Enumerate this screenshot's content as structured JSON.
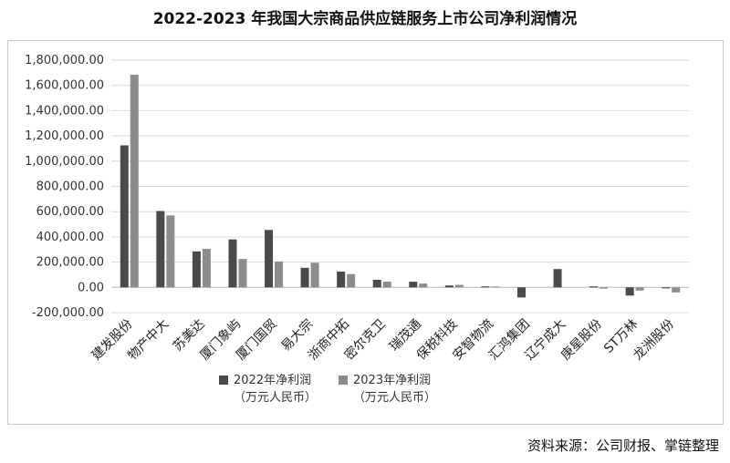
{
  "title": "2022-2023 年我国大宗商品供应链服务上市公司净利润情况",
  "source": "资料来源：公司财报、掌链整理",
  "colors": {
    "series_2022": "#4a4a4a",
    "series_2023": "#8c8c8c",
    "grid": "#d9d9d9",
    "axis": "#bdbdbd"
  },
  "chart_data": {
    "type": "bar",
    "title": "2022-2023 年我国大宗商品供应链服务上市公司净利润情况",
    "xlabel": "",
    "ylabel": "",
    "ylim": [
      -200000,
      1800000
    ],
    "yticks": [
      -200000,
      0,
      200000,
      400000,
      600000,
      800000,
      1000000,
      1200000,
      1400000,
      1600000,
      1800000
    ],
    "ytick_labels": [
      "-200,000.00",
      "0.00",
      "200,000.00",
      "400,000.00",
      "600,000.00",
      "800,000.00",
      "1,000,000.00",
      "1,200,000.00",
      "1,400,000.00",
      "1,600,000.00",
      "1,800,000.00"
    ],
    "grid": true,
    "legend_position": "bottom",
    "categories": [
      "建发股份",
      "物产中大",
      "苏美达",
      "厦门象屿",
      "厦门国贸",
      "易大宗",
      "浙商中拓",
      "密尔克卫",
      "瑞茂通",
      "保税科技",
      "安智物流",
      "汇鸿集团",
      "辽宁成大",
      "庚星股份",
      "ST万林",
      "龙洲股份"
    ],
    "series": [
      {
        "name": "2022年净利润",
        "unit": "（万元人民币）",
        "values": [
          1125000,
          605000,
          285000,
          380000,
          455000,
          155000,
          125000,
          60000,
          45000,
          15000,
          8000,
          -80000,
          145000,
          8000,
          -65000,
          -8000
        ]
      },
      {
        "name": "2023年净利润",
        "unit": "（万元人民币）",
        "values": [
          1685000,
          570000,
          305000,
          225000,
          205000,
          195000,
          105000,
          45000,
          30000,
          20000,
          7000,
          0,
          0,
          -10000,
          -25000,
          -40000
        ]
      }
    ]
  }
}
